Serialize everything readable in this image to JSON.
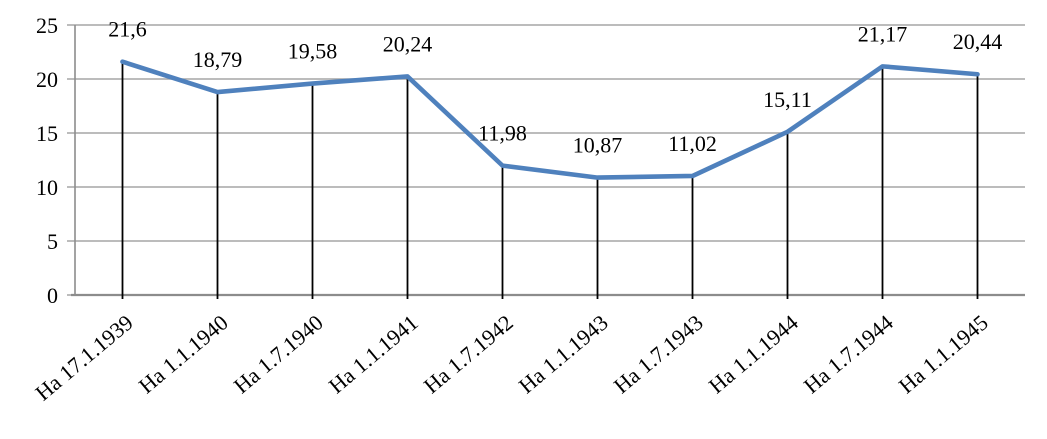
{
  "chart_data": {
    "type": "line",
    "title": "",
    "xlabel": "",
    "ylabel": "",
    "categories": [
      "На 17.1.1939",
      "На 1.1.1940",
      "На 1.7.1940",
      "На 1.1.1941",
      "На 1.7.1942",
      "На 1.1.1943",
      "На 1.7.1943",
      "На 1.1.1944",
      "На 1.7.1944",
      "На 1.1.1945"
    ],
    "values": [
      21.6,
      18.79,
      19.58,
      20.24,
      11.98,
      10.87,
      11.02,
      15.11,
      21.17,
      20.44
    ],
    "value_labels": [
      "21,6",
      "18,79",
      "19,58",
      "20,24",
      "11,98",
      "10,87",
      "11,02",
      "15,11",
      "21,17",
      "20,44"
    ],
    "ylim": [
      0,
      25
    ],
    "y_ticks": [
      0,
      5,
      10,
      15,
      20,
      25
    ],
    "y_tick_labels": [
      "0",
      "5",
      "10",
      "15",
      "20",
      "25"
    ],
    "grid": true,
    "legend": "none",
    "colors": {
      "line": "#4F81BD",
      "drop_line": "#000000",
      "gridline": "#A6A6A6",
      "axis": "#8C8C8C",
      "text": "#000000",
      "background": "#FFFFFF"
    }
  }
}
